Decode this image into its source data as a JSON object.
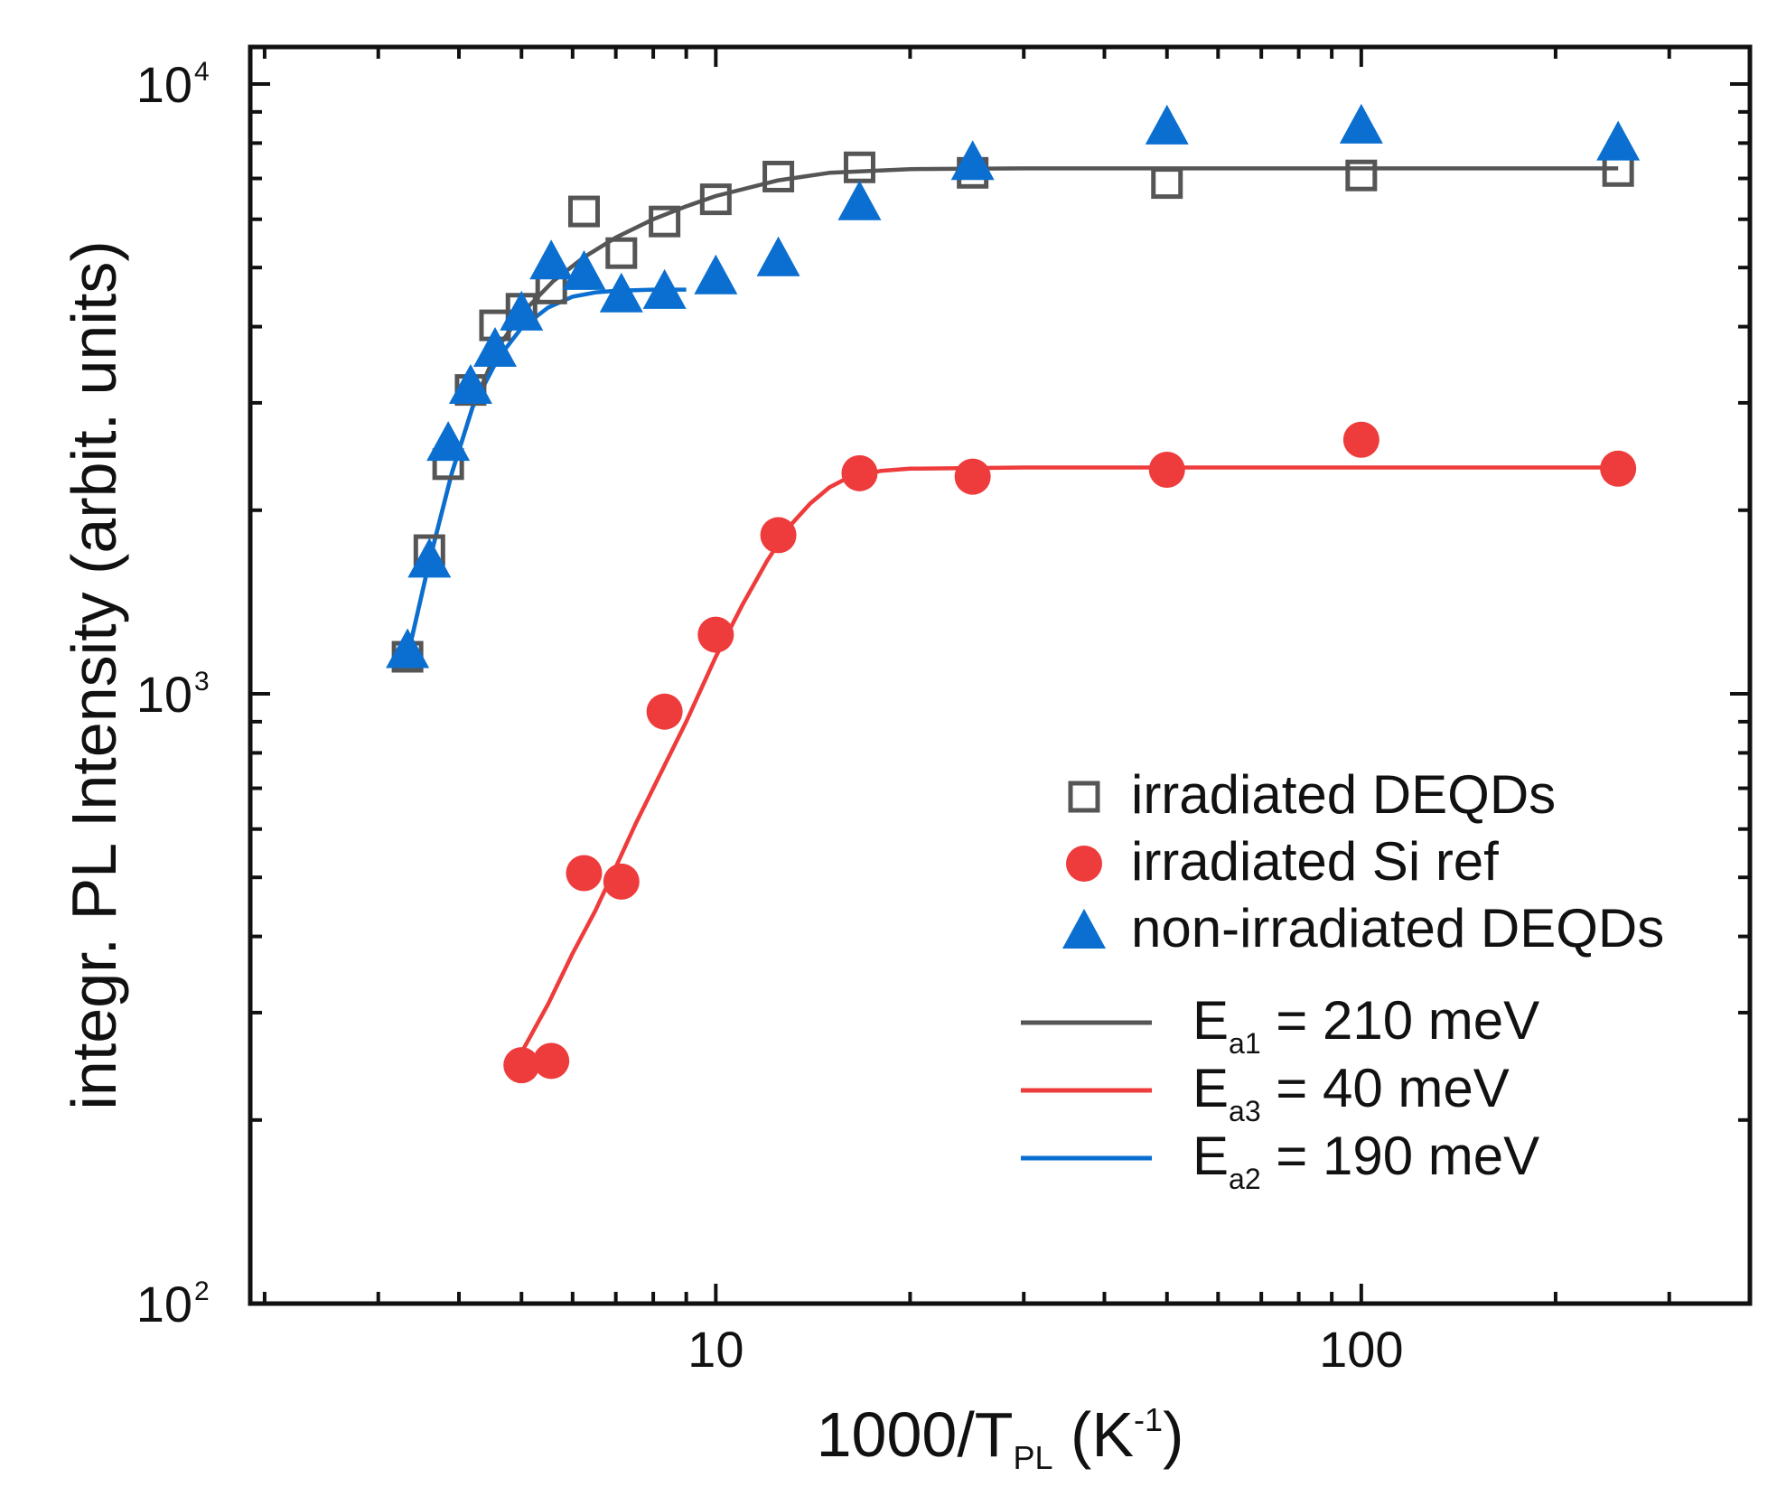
{
  "chart_data": {
    "type": "scatter",
    "title": "",
    "xlabel": {
      "main": "1000/T",
      "sub": "PL",
      "unit_open": " (K",
      "unit_sup": "-1",
      "unit_close": ")"
    },
    "ylabel": "integr. PL Intensity (arbit. units)",
    "xscale": "log",
    "yscale": "log",
    "xlim": [
      1.9,
      400
    ],
    "ylim": [
      100,
      11500
    ],
    "x_ticks": [
      {
        "value": 10,
        "label": "10"
      },
      {
        "value": 100,
        "label": "100"
      }
    ],
    "y_ticks": [
      {
        "value": 100,
        "base": "10",
        "exp": "2"
      },
      {
        "value": 1000,
        "base": "10",
        "exp": "3"
      },
      {
        "value": 10000,
        "base": "10",
        "exp": "4"
      }
    ],
    "colors": {
      "gray": "#555555",
      "red": "#ee3b3b",
      "blue": "#0a6fd0",
      "axis": "#111111"
    },
    "series": [
      {
        "name": "irradiated DEQDs",
        "marker": "open-square",
        "color": "#555555",
        "x": [
          3.33,
          3.6,
          3.85,
          4.17,
          4.55,
          5.0,
          5.56,
          6.25,
          7.14,
          8.33,
          10.0,
          12.5,
          16.7,
          25,
          50,
          100,
          250
        ],
        "y": [
          1150,
          1720,
          2380,
          3150,
          4020,
          4280,
          4620,
          6180,
          5280,
          5950,
          6470,
          7050,
          7300,
          7150,
          6880,
          7080,
          7200
        ]
      },
      {
        "name": "irradiated Si ref",
        "marker": "filled-circle",
        "color": "#ee3b3b",
        "x": [
          5.0,
          5.56,
          6.25,
          7.14,
          8.33,
          10.0,
          12.5,
          16.7,
          25,
          50,
          100,
          250
        ],
        "y": [
          246,
          250,
          508,
          492,
          935,
          1250,
          1820,
          2300,
          2270,
          2330,
          2610,
          2340
        ]
      },
      {
        "name": "non-irradiated DEQDs",
        "marker": "filled-triangle",
        "color": "#0a6fd0",
        "x": [
          3.33,
          3.6,
          3.85,
          4.17,
          4.55,
          5.0,
          5.56,
          6.25,
          7.14,
          8.33,
          10.0,
          12.5,
          16.7,
          25,
          50,
          100,
          250
        ],
        "y": [
          1180,
          1660,
          2580,
          3200,
          3680,
          4220,
          5120,
          4920,
          4520,
          4580,
          4840,
          5180,
          6400,
          7450,
          8520,
          8550,
          8020
        ]
      }
    ],
    "fits": [
      {
        "name": "Ea1 = 210 meV",
        "label_main": "E",
        "label_sub": "a1",
        "label_rest": " = 210 meV",
        "color": "#555555",
        "points": [
          [
            3.33,
            1150
          ],
          [
            3.6,
            1650
          ],
          [
            3.9,
            2300
          ],
          [
            4.2,
            2950
          ],
          [
            4.6,
            3700
          ],
          [
            5.0,
            4200
          ],
          [
            5.6,
            4750
          ],
          [
            6.25,
            5200
          ],
          [
            7.0,
            5600
          ],
          [
            8.0,
            6000
          ],
          [
            9.0,
            6300
          ],
          [
            10,
            6550
          ],
          [
            12.5,
            6950
          ],
          [
            15,
            7150
          ],
          [
            20,
            7250
          ],
          [
            30,
            7270
          ],
          [
            100,
            7270
          ],
          [
            250,
            7270
          ]
        ]
      },
      {
        "name": "Ea3 = 40 meV",
        "label_main": "E",
        "label_sub": "a3",
        "label_rest": " = 40 meV",
        "color": "#ee3b3b",
        "points": [
          [
            5.0,
            258
          ],
          [
            5.5,
            310
          ],
          [
            6.0,
            375
          ],
          [
            6.5,
            440
          ],
          [
            7.0,
            520
          ],
          [
            7.5,
            610
          ],
          [
            8.0,
            700
          ],
          [
            9.0,
            900
          ],
          [
            10,
            1150
          ],
          [
            11,
            1400
          ],
          [
            12,
            1650
          ],
          [
            13,
            1880
          ],
          [
            14,
            2050
          ],
          [
            15,
            2180
          ],
          [
            16,
            2260
          ],
          [
            18,
            2320
          ],
          [
            20,
            2340
          ],
          [
            30,
            2350
          ],
          [
            100,
            2350
          ],
          [
            250,
            2350
          ]
        ]
      },
      {
        "name": "Ea2 = 190 meV",
        "label_main": "E",
        "label_sub": "a2",
        "label_rest": " = 190 meV",
        "color": "#0a6fd0",
        "points": [
          [
            3.33,
            1150
          ],
          [
            3.6,
            1650
          ],
          [
            3.9,
            2300
          ],
          [
            4.2,
            2950
          ],
          [
            4.6,
            3550
          ],
          [
            5.0,
            3980
          ],
          [
            5.5,
            4300
          ],
          [
            6.0,
            4480
          ],
          [
            6.5,
            4550
          ],
          [
            7.0,
            4580
          ],
          [
            8.0,
            4600
          ],
          [
            9.0,
            4600
          ]
        ]
      }
    ],
    "legend": {
      "position": "lower-right"
    }
  }
}
